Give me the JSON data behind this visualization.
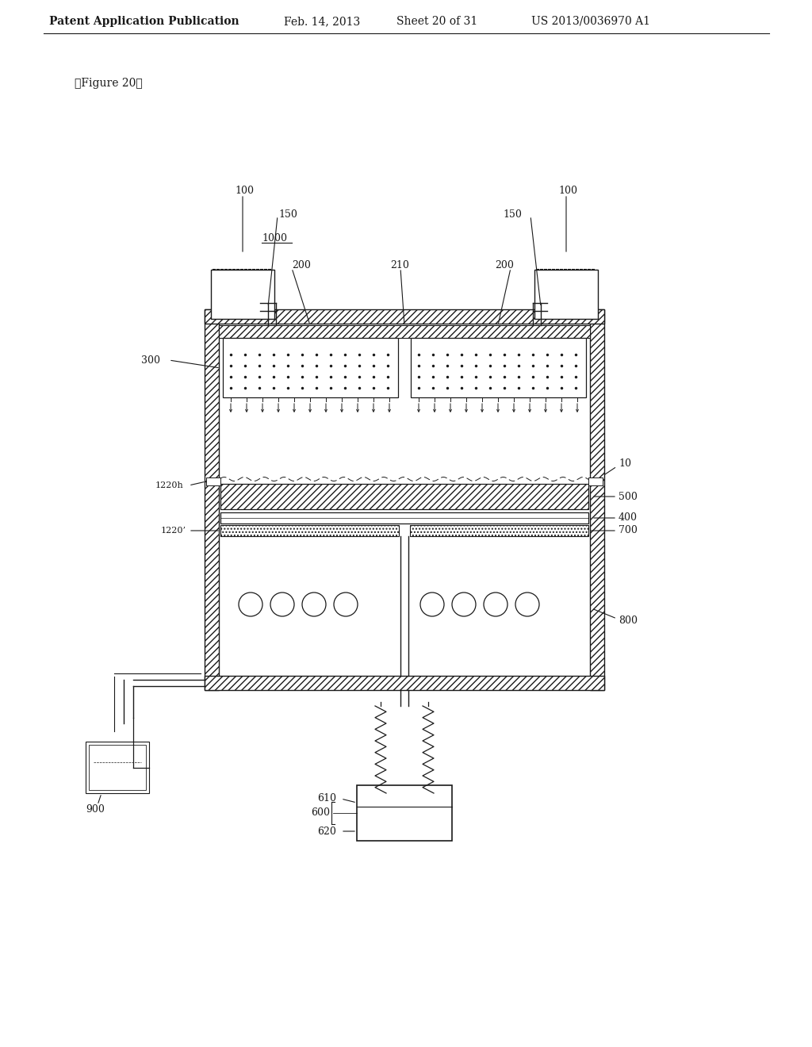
{
  "bg_color": "#ffffff",
  "lc": "#1a1a1a",
  "header_text": "Patent Application Publication",
  "header_date": "Feb. 14, 2013",
  "header_sheet": "Sheet 20 of 31",
  "header_patent": "US 2013/0036970 A1",
  "figure_label": "【Figure 20】",
  "label_1000": "1000",
  "label_100_l": "100",
  "label_100_r": "100",
  "label_150_l": "150",
  "label_150_r": "150",
  "label_200_l": "200",
  "label_210": "210",
  "label_200_r": "200",
  "label_300": "300",
  "label_10": "10",
  "label_500": "500",
  "label_400": "400",
  "label_1220h": "1220h",
  "label_1220p": "1220’",
  "label_700": "700",
  "label_800": "800",
  "label_900": "900",
  "label_600": "600",
  "label_610": "610",
  "label_620": "620"
}
